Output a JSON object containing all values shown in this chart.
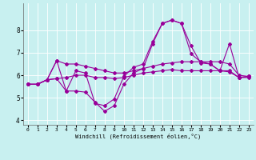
{
  "xlabel": "Windchill (Refroidissement éolien,°C)",
  "bg_color": "#c8f0f0",
  "grid_color": "#ffffff",
  "line_color": "#990099",
  "marker": "D",
  "markersize": 2.0,
  "linewidth": 0.8,
  "xlim": [
    -0.5,
    23.5
  ],
  "ylim": [
    3.8,
    9.2
  ],
  "yticks": [
    4,
    5,
    6,
    7,
    8
  ],
  "xticks": [
    0,
    1,
    2,
    3,
    4,
    5,
    6,
    7,
    8,
    9,
    10,
    11,
    12,
    13,
    14,
    15,
    16,
    17,
    18,
    19,
    20,
    21,
    22,
    23
  ],
  "xlabel_bg": "#9999cc",
  "series": [
    [
      5.6,
      5.6,
      5.8,
      6.65,
      6.5,
      6.5,
      6.4,
      6.3,
      6.2,
      6.1,
      6.1,
      6.2,
      6.3,
      6.4,
      6.5,
      6.55,
      6.6,
      6.6,
      6.6,
      6.6,
      6.6,
      6.5,
      6.0,
      5.95
    ],
    [
      5.6,
      5.6,
      5.8,
      5.85,
      5.9,
      6.0,
      6.0,
      5.9,
      5.9,
      5.85,
      5.9,
      6.0,
      6.1,
      6.15,
      6.2,
      6.25,
      6.2,
      6.2,
      6.2,
      6.2,
      6.2,
      6.15,
      5.9,
      5.9
    ],
    [
      5.6,
      5.6,
      5.8,
      6.65,
      5.3,
      6.2,
      6.1,
      4.75,
      4.65,
      4.95,
      5.95,
      6.35,
      6.5,
      7.5,
      8.3,
      8.45,
      8.3,
      6.95,
      6.6,
      6.5,
      6.2,
      6.2,
      5.9,
      5.95
    ],
    [
      5.6,
      5.6,
      5.8,
      5.85,
      5.3,
      5.3,
      5.25,
      4.8,
      4.4,
      4.65,
      5.6,
      6.1,
      6.3,
      7.4,
      8.3,
      8.45,
      8.3,
      7.3,
      6.55,
      6.5,
      6.2,
      7.4,
      5.9,
      5.95
    ]
  ]
}
